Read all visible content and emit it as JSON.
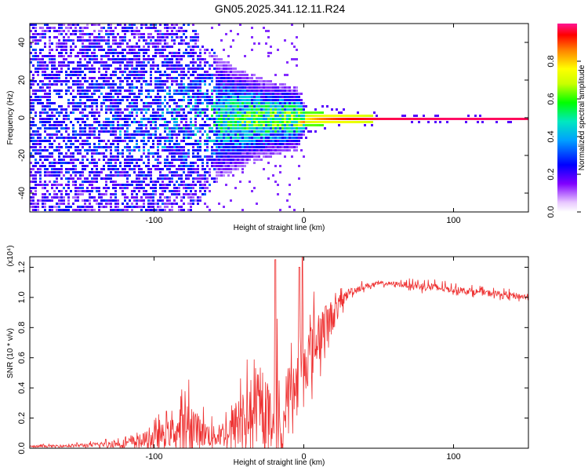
{
  "figure_title": "GN05.2025.341.12.11.R24",
  "chart_data": [
    {
      "type": "heatmap",
      "name": "spectrogram",
      "title": "GN05.2025.341.12.11.R24",
      "xlabel": "Height of straight line (km)",
      "ylabel": "Frequency (Hz)",
      "xlim": [
        -183,
        150
      ],
      "ylim": [
        -50,
        50
      ],
      "xticks": [
        -100,
        0,
        100
      ],
      "xtick_labels": [
        "-100",
        "0",
        "100"
      ],
      "yticks": [
        -40,
        -20,
        0,
        20,
        40
      ],
      "ytick_labels": [
        "-40",
        "-20",
        "0",
        "20",
        "40"
      ],
      "band": {
        "x": [
          -183,
          -150,
          -110,
          -80,
          -60,
          -40,
          -20,
          -5,
          0,
          10,
          25,
          50,
          100,
          150
        ],
        "halfwidth_hz": [
          50,
          50,
          48,
          38,
          25,
          18,
          14,
          12,
          5,
          3.5,
          2.5,
          1.5,
          1.2,
          1.2
        ],
        "peak_amplitude": [
          0.2,
          0.22,
          0.28,
          0.35,
          0.42,
          0.48,
          0.52,
          0.55,
          0.7,
          0.8,
          0.88,
          0.95,
          0.97,
          0.96
        ]
      },
      "colorbar": {
        "label": "Normalized spectral amplitude",
        "range": [
          0,
          1
        ],
        "ticks": [
          0.0,
          0.2,
          0.4,
          0.6,
          0.8
        ],
        "tick_labels": [
          "0.0",
          "0.2",
          "0.4",
          "0.6",
          "0.8"
        ],
        "colormap": "rainbow",
        "stops": [
          "#f0e0ff",
          "#6a00ff",
          "#0000ff",
          "#00b0ff",
          "#00e0c0",
          "#00ff00",
          "#c8ff00",
          "#ffff00",
          "#ff8000",
          "#ff0000",
          "#ff1493"
        ]
      }
    },
    {
      "type": "line",
      "name": "snr",
      "xlabel": "Height of straight line (km)",
      "ylabel": "SNR (10 * v/v)",
      "scale_label": "(x10⁴)",
      "xlim": [
        -183,
        150
      ],
      "ylim": [
        0,
        1.27
      ],
      "xticks": [
        -100,
        0,
        100
      ],
      "xtick_labels": [
        "-100",
        "0",
        "100"
      ],
      "yticks": [
        0.0,
        0.2,
        0.4,
        0.6,
        0.8,
        1.0,
        1.2
      ],
      "ytick_labels": [
        "0.0",
        "0.2",
        "0.4",
        "0.6",
        "0.8",
        "1.0",
        "1.2"
      ],
      "color": "#ee3030",
      "series": [
        {
          "name": "SNR envelope",
          "x": [
            -183,
            -160,
            -140,
            -120,
            -110,
            -100,
            -90,
            -80,
            -75,
            -70,
            -60,
            -50,
            -45,
            -40,
            -35,
            -30,
            -25,
            -20,
            -18,
            -16,
            -14,
            -12,
            -10,
            -8,
            -6,
            -4,
            -2,
            0,
            5,
            10,
            15,
            20,
            25,
            30,
            40,
            50,
            60,
            70,
            80,
            90,
            100,
            110,
            120,
            130,
            140,
            150
          ],
          "base": [
            0.01,
            0.015,
            0.02,
            0.03,
            0.04,
            0.06,
            0.09,
            0.12,
            0.14,
            0.1,
            0.07,
            0.1,
            0.14,
            0.18,
            0.2,
            0.22,
            0.2,
            0.18,
            0.35,
            0.05,
            0.04,
            0.3,
            0.38,
            0.4,
            0.35,
            0.45,
            0.5,
            0.55,
            0.62,
            0.72,
            0.8,
            0.88,
            0.96,
            1.03,
            1.07,
            1.09,
            1.09,
            1.08,
            1.07,
            1.06,
            1.05,
            1.04,
            1.03,
            1.02,
            1.01,
            1.0
          ],
          "noise": [
            0.01,
            0.012,
            0.02,
            0.04,
            0.06,
            0.1,
            0.12,
            0.2,
            0.25,
            0.15,
            0.1,
            0.15,
            0.25,
            0.3,
            0.25,
            0.3,
            0.3,
            0.25,
            0.6,
            0.15,
            0.1,
            0.25,
            0.25,
            0.25,
            0.25,
            0.3,
            0.3,
            0.3,
            0.28,
            0.25,
            0.2,
            0.15,
            0.08,
            0.04,
            0.03,
            0.02,
            0.02,
            0.03,
            0.04,
            0.04,
            0.03,
            0.03,
            0.03,
            0.03,
            0.03,
            0.03
          ]
        }
      ],
      "spikes": [
        {
          "x": -19,
          "y": 1.25
        },
        {
          "x": -1,
          "y": 1.27
        },
        {
          "x": -3,
          "y": 1.2
        }
      ]
    }
  ]
}
